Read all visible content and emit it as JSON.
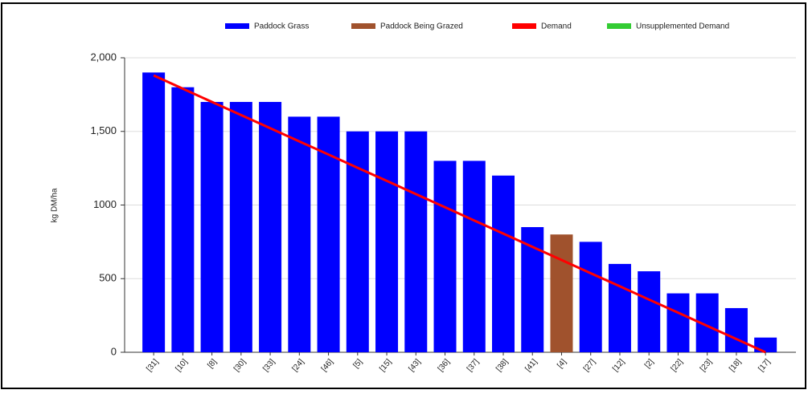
{
  "chart_data": {
    "type": "bar",
    "y_label": "kg DM/ha",
    "categories": [
      "[31]",
      "[10]",
      "[8]",
      "[30]",
      "[33]",
      "[24]",
      "[46]",
      "[5]",
      "[15]",
      "[43]",
      "[36]",
      "[37]",
      "[38]",
      "[41]",
      "[4]",
      "[27]",
      "[12]",
      "[2]",
      "[22]",
      "[23]",
      "[18]",
      "[17]"
    ],
    "series": [
      {
        "name": "Paddock Grass",
        "color": "#0000ff",
        "kind": "bar",
        "values": [
          1900,
          1800,
          1700,
          1700,
          1700,
          1600,
          1600,
          1500,
          1500,
          1500,
          1300,
          1300,
          1200,
          850,
          null,
          750,
          600,
          550,
          400,
          400,
          300,
          100
        ]
      },
      {
        "name": "Paddock Being Grazed",
        "color": "#a0522d",
        "kind": "bar",
        "values": [
          null,
          null,
          null,
          null,
          null,
          null,
          null,
          null,
          null,
          null,
          null,
          null,
          null,
          null,
          800,
          null,
          null,
          null,
          null,
          null,
          null,
          null
        ]
      },
      {
        "name": "Demand",
        "color": "#ff0000",
        "kind": "line",
        "values": [
          1880,
          1790,
          1700,
          1611,
          1522,
          1432,
          1343,
          1253,
          1164,
          1074,
          985,
          895,
          806,
          716,
          627,
          537,
          448,
          358,
          269,
          179,
          90,
          0
        ]
      },
      {
        "name": "Unsupplemented Demand",
        "color": "#33cc33",
        "kind": "line",
        "values": [
          null,
          null,
          null,
          null,
          null,
          null,
          null,
          null,
          null,
          null,
          null,
          null,
          null,
          null,
          null,
          null,
          null,
          null,
          null,
          null,
          null,
          null
        ]
      }
    ],
    "ylim": [
      0,
      2000
    ],
    "yticks": [
      0,
      500,
      1000,
      {
        "value": 1500,
        "label": "1,500"
      },
      {
        "value": 2000,
        "label": "2,000"
      }
    ],
    "grid": true
  }
}
